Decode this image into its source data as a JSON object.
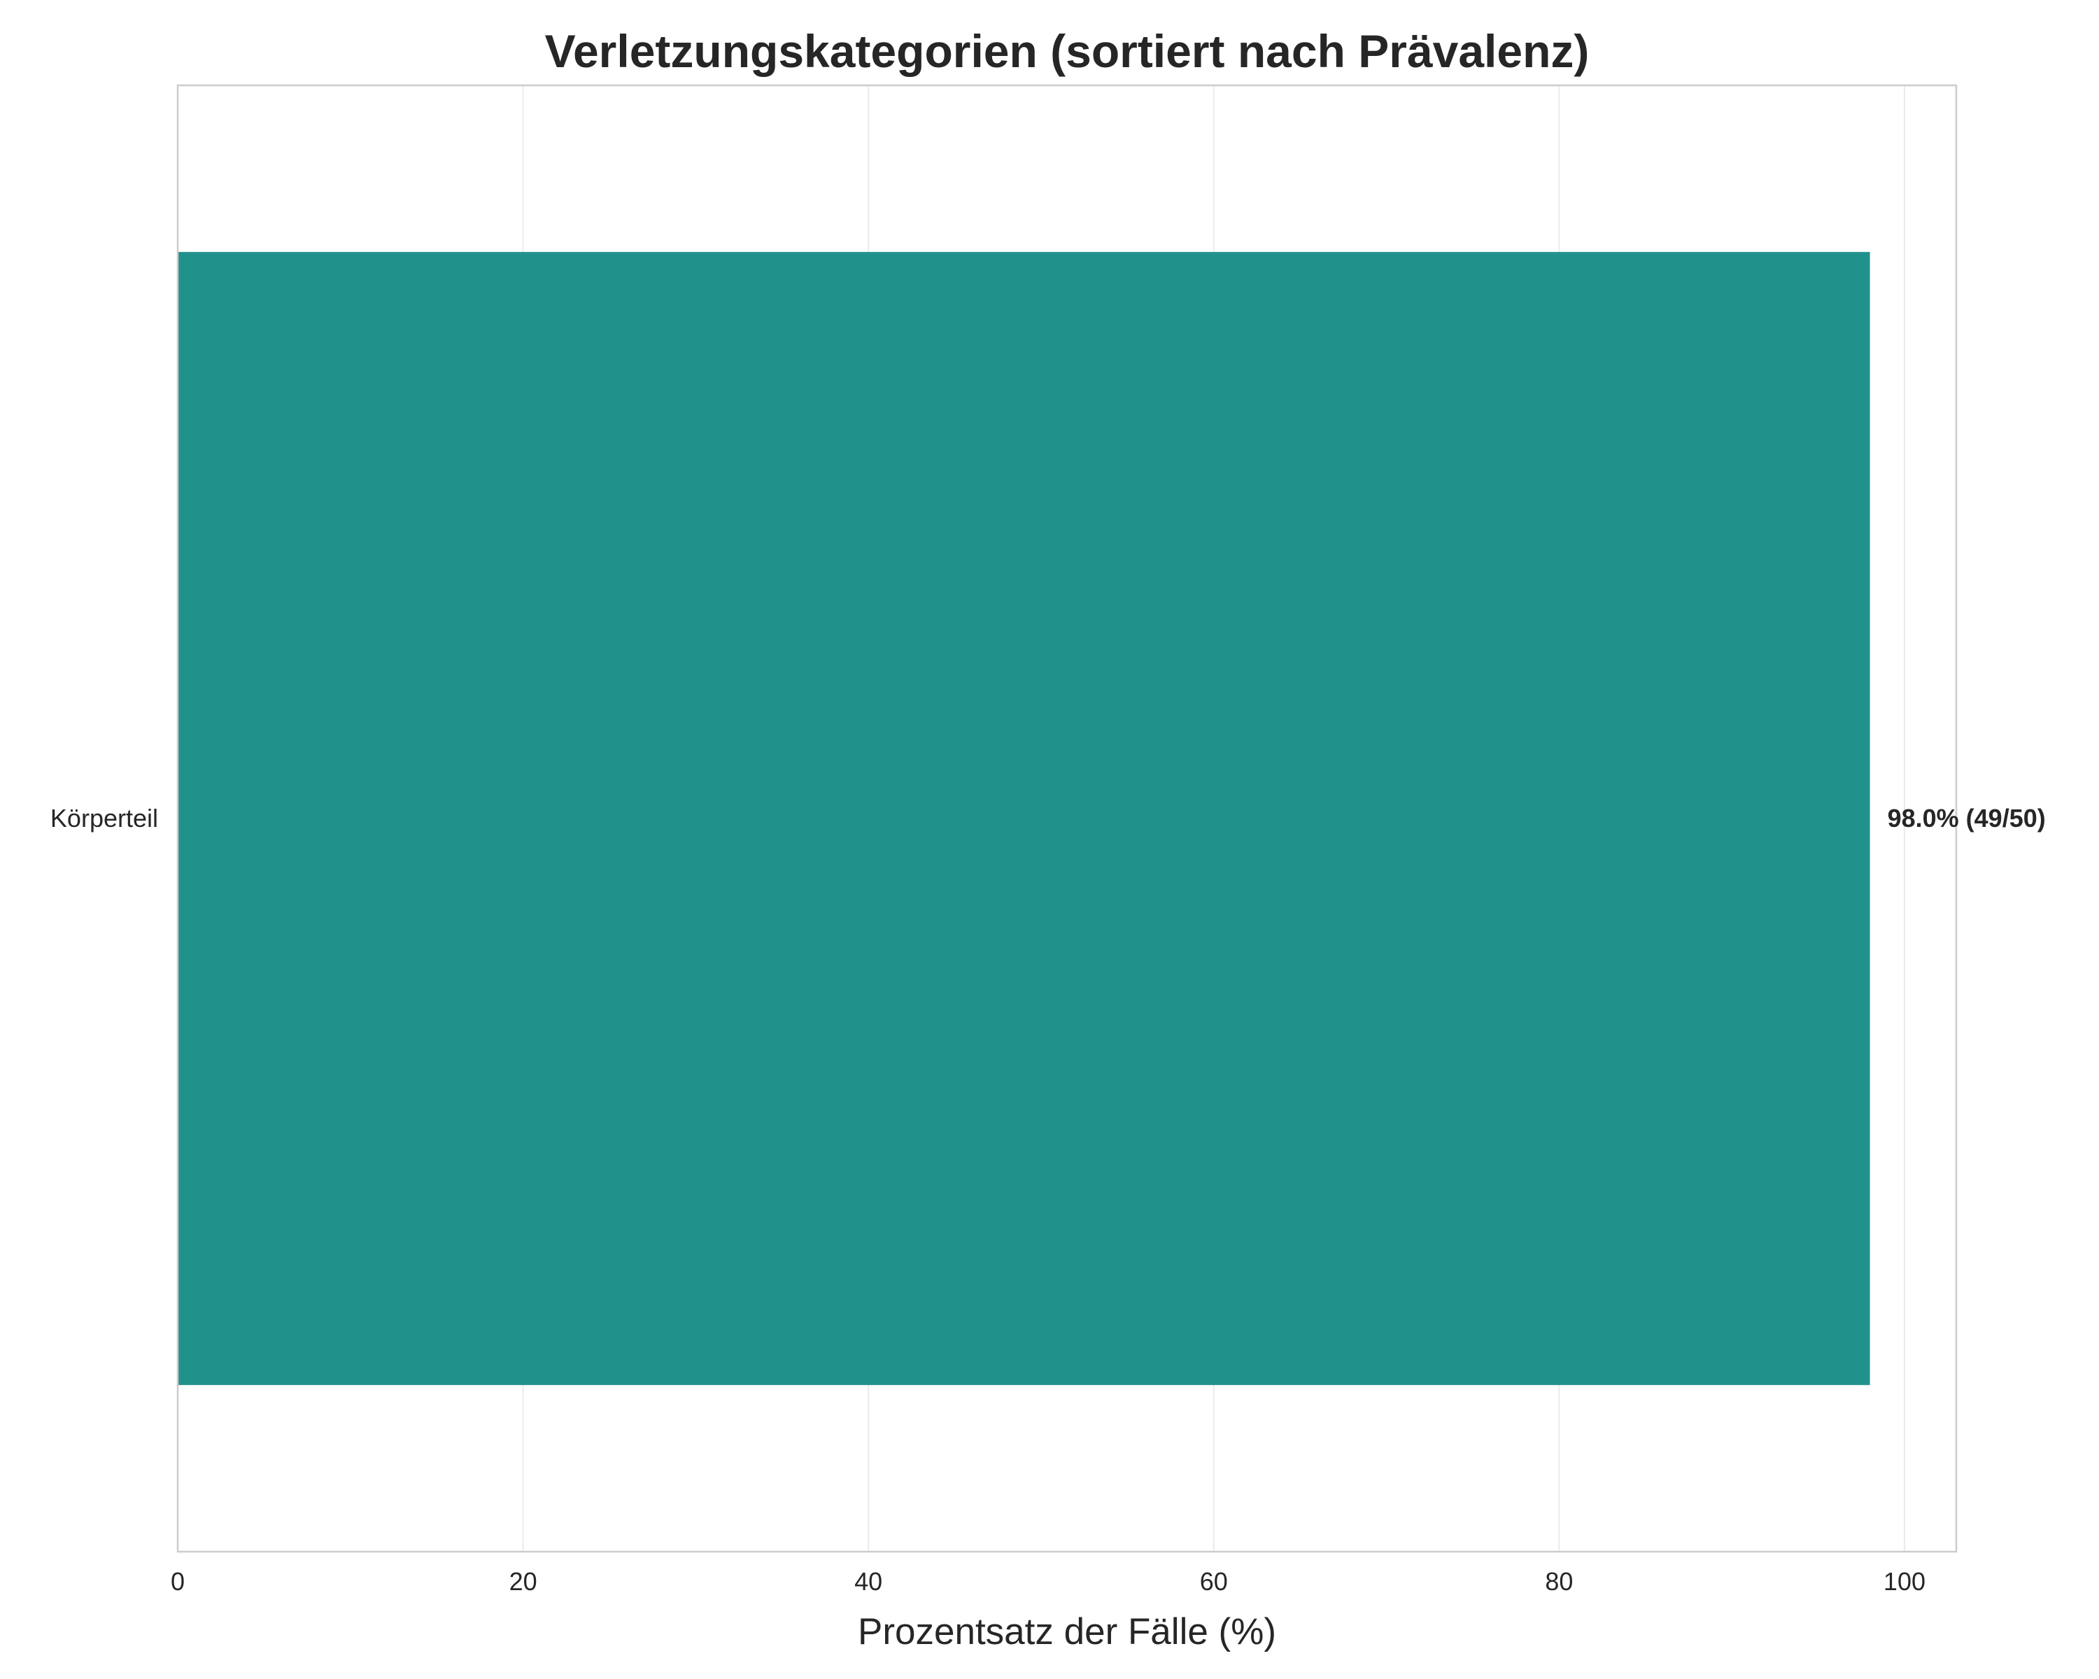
{
  "chart_data": {
    "type": "bar",
    "orientation": "horizontal",
    "title": "Verletzungskategorien (sortiert nach Prävalenz)",
    "xlabel": "Prozentsatz der Fälle (%)",
    "ylabel": "",
    "categories": [
      "Körperteil"
    ],
    "values": [
      98.0
    ],
    "data_labels": [
      "98.0% (49/50)"
    ],
    "xlim": [
      0,
      103
    ],
    "xticks": [
      0,
      20,
      40,
      60,
      80,
      100
    ],
    "grid": "vertical",
    "legend": "none",
    "bar_color": "#21918c"
  }
}
